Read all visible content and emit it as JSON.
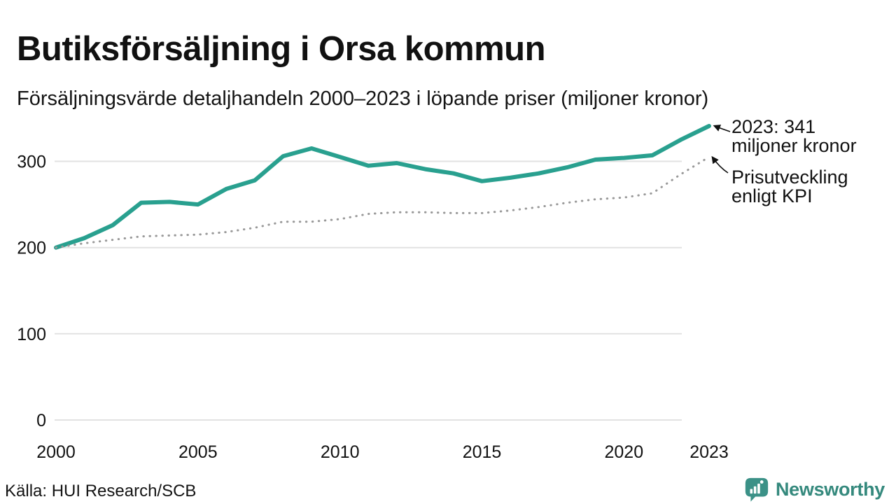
{
  "chart_data": {
    "type": "line",
    "title": "Butiksförsäljning i Orsa kommun",
    "subtitle": "Försäljningsvärde detaljhandeln 2000–2023 i löpande priser (miljoner kronor)",
    "source": "Källa: HUI Research/SCB",
    "x": [
      2000,
      2001,
      2002,
      2003,
      2004,
      2005,
      2006,
      2007,
      2008,
      2009,
      2010,
      2011,
      2012,
      2013,
      2014,
      2015,
      2016,
      2017,
      2018,
      2019,
      2020,
      2021,
      2022,
      2023
    ],
    "x_ticks": [
      2000,
      2005,
      2010,
      2015,
      2020,
      2023
    ],
    "y_ticks": [
      0,
      100,
      200,
      300
    ],
    "xlim": [
      2000,
      2023
    ],
    "ylim": [
      0,
      370
    ],
    "grid": "horizontal-only",
    "legend": "labels-at-line-ends",
    "series": [
      {
        "name": "Butiksförsäljning i löpande priser (miljoner kronor)",
        "line_style": "solid",
        "color": "#29A08F",
        "values": [
          200,
          211,
          226,
          252,
          253,
          250,
          268,
          278,
          306,
          315,
          305,
          295,
          298,
          291,
          286,
          277,
          281,
          286,
          293,
          302,
          304,
          307,
          325,
          341
        ]
      },
      {
        "name": "Prisutveckling enligt KPI",
        "line_style": "dotted",
        "color": "#999999",
        "values": [
          200,
          205,
          209,
          213,
          214,
          215,
          218,
          223,
          230,
          230,
          233,
          239,
          241,
          241,
          240,
          240,
          243,
          247,
          252,
          256,
          258,
          263,
          285,
          305
        ]
      }
    ],
    "annotations": [
      {
        "series": 0,
        "line1": "2023: 341",
        "line2": "miljoner kronor"
      },
      {
        "series": 1,
        "line1": "Prisutveckling",
        "line2": "enligt KPI"
      }
    ],
    "end_value_label": "341"
  },
  "footer": {
    "brand": "Newsworthy"
  },
  "colors": {
    "accent": "#29A08F",
    "kpi_dotted": "#999999",
    "grid": "#E2E2E2",
    "text": "#111111",
    "brand": "#35897D"
  }
}
